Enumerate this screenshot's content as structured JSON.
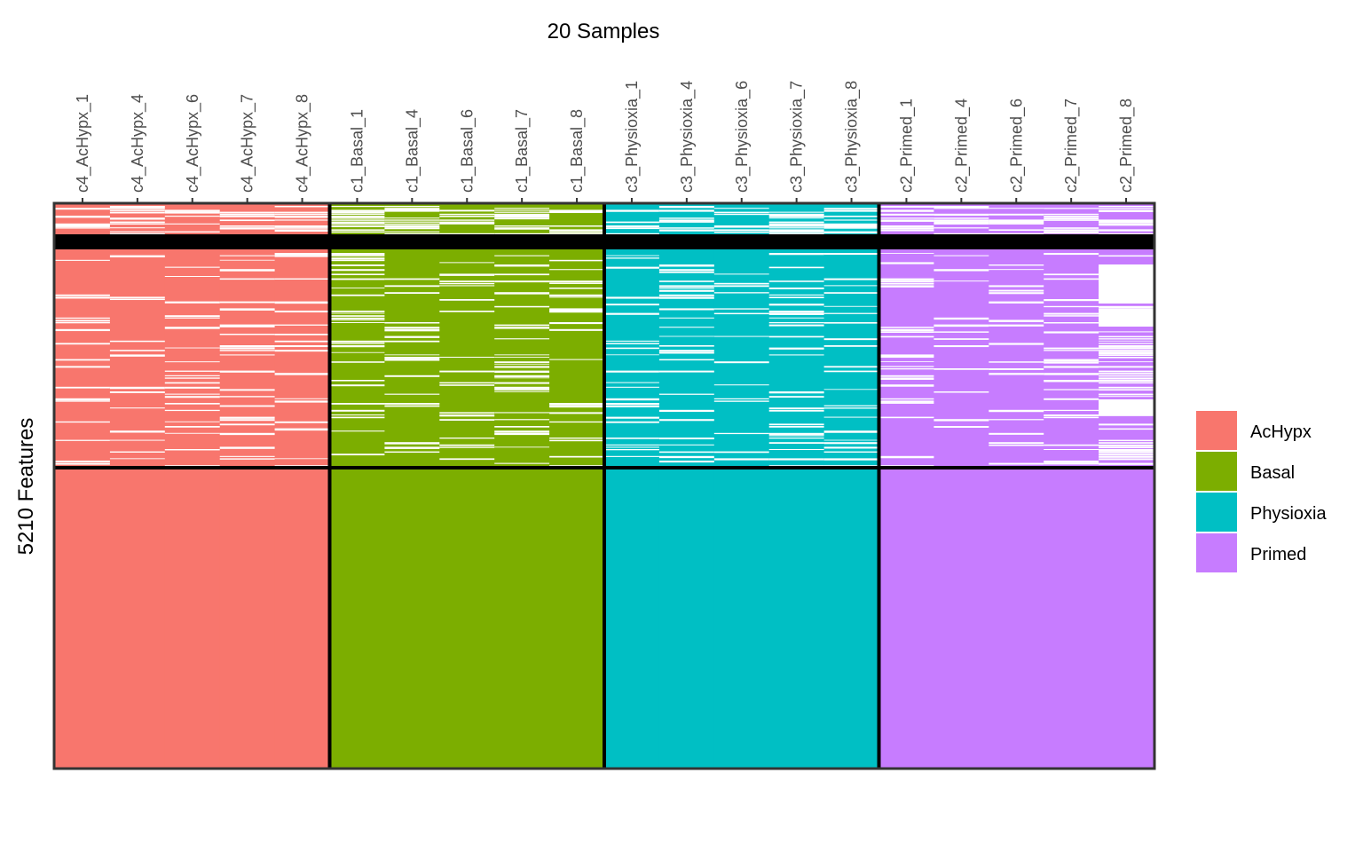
{
  "chart_data": {
    "type": "heatmap",
    "title": "20 Samples",
    "ylabel": "5210 Features",
    "samples": [
      "c4_AcHypx_1",
      "c4_AcHypx_4",
      "c4_AcHypx_6",
      "c4_AcHypx_7",
      "c4_AcHypx_8",
      "c1_Basal_1",
      "c1_Basal_4",
      "c1_Basal_6",
      "c1_Basal_7",
      "c1_Basal_8",
      "c3_Physioxia_1",
      "c3_Physioxia_4",
      "c3_Physioxia_6",
      "c3_Physioxia_7",
      "c3_Physioxia_8",
      "c2_Primed_1",
      "c2_Primed_4",
      "c2_Primed_6",
      "c2_Primed_7",
      "c2_Primed_8"
    ],
    "groups": [
      {
        "name": "AcHypx",
        "color": "#F8766D",
        "samples": 5
      },
      {
        "name": "Basal",
        "color": "#7CAE00",
        "samples": 5
      },
      {
        "name": "Physioxia",
        "color": "#00BFC4",
        "samples": 5
      },
      {
        "name": "Primed",
        "color": "#C77CFF",
        "samples": 5
      }
    ],
    "legend": {
      "position": "right",
      "entries": [
        {
          "label": "AcHypx",
          "color": "#F8766D"
        },
        {
          "label": "Basal",
          "color": "#7CAE00"
        },
        {
          "label": "Physioxia",
          "color": "#00BFC4"
        },
        {
          "label": "Primed",
          "color": "#C77CFF"
        }
      ]
    },
    "feature_blocks": [
      {
        "block": "top",
        "share": 0.11,
        "present": "sparse"
      },
      {
        "block": "middle",
        "share": 0.35,
        "present": "mostly present with gaps"
      },
      {
        "block": "bottom",
        "share": 0.54,
        "present": "all present"
      }
    ],
    "missing_color": "#FFFFFF"
  }
}
